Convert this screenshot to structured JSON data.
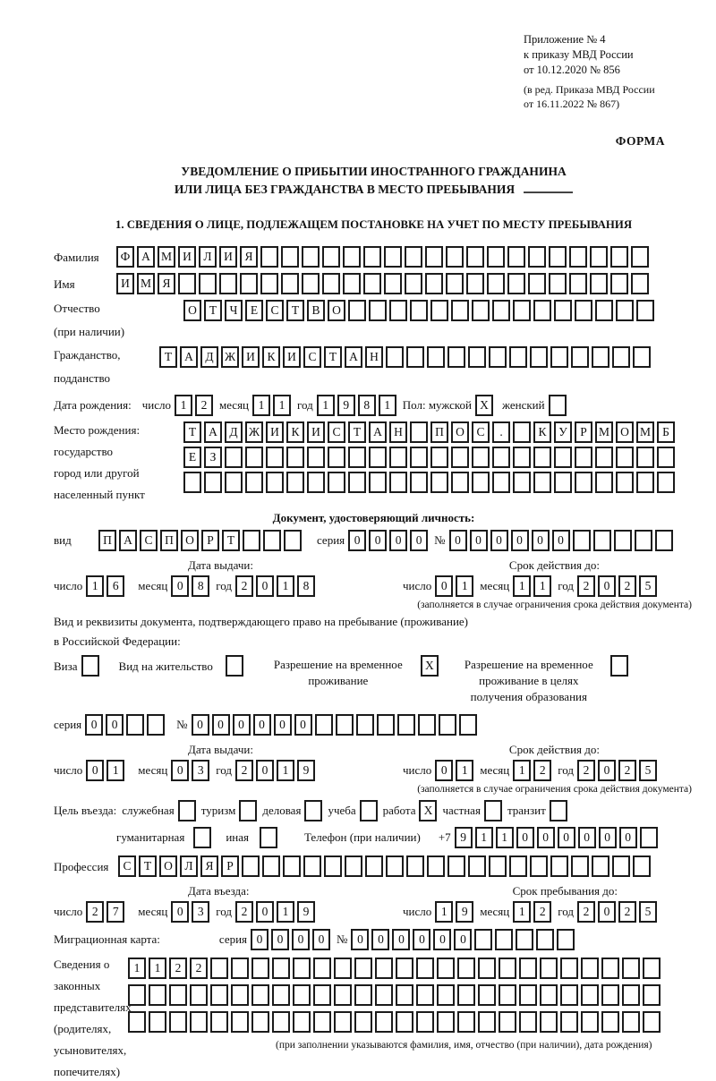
{
  "meta": {
    "ref_lines": [
      "Приложение № 4",
      "к приказу МВД России",
      "от 10.12.2020 № 856"
    ],
    "ref_sub_lines": [
      "(в ред. Приказа МВД России",
      "от 16.11.2022 № 867)"
    ],
    "form_label": "ФОРМА"
  },
  "title": {
    "line1": "УВЕДОМЛЕНИЕ О ПРИБЫТИИ ИНОСТРАННОГО ГРАЖДАНИНА",
    "line2": "ИЛИ ЛИЦА БЕЗ ГРАЖДАНСТВА В МЕСТО ПРЕБЫВАНИЯ"
  },
  "section1": {
    "heading": "1. СВЕДЕНИЯ О ЛИЦЕ, ПОДЛЕЖАЩЕМ ПОСТАНОВКЕ НА УЧЕТ ПО МЕСТУ ПРЕБЫВАНИЯ"
  },
  "labels": {
    "day": "число",
    "month": "месяц",
    "year": "год",
    "series": "серия",
    "number": "№",
    "issue_date": "Дата выдачи:",
    "valid_until": "Срок действия до:",
    "validity_note": "(заполняется в случае ограничения срока действия документа)"
  },
  "person": {
    "surname": {
      "label": "Фамилия",
      "value": "ФАМИЛИЯ"
    },
    "name": {
      "label": "Имя",
      "value": "ИМЯ"
    },
    "patronymic": {
      "label_line1": "Отчество",
      "label_line2": "(при наличии)",
      "value": "ОТЧЕСТВО"
    },
    "citizenship": {
      "label_line1": "Гражданство,",
      "label_line2": "подданство",
      "value": "ТАДЖИКИСТАН"
    },
    "birth_date": {
      "label": "Дата рождения:",
      "day": "12",
      "month": "11",
      "year": "1981"
    },
    "sex": {
      "label": "Пол: мужской",
      "male_value": "X",
      "female_label": "женский",
      "female_value": ""
    },
    "birth_place": {
      "label_line1": "Место рождения:",
      "label_line2": "государство",
      "label_line3": "город или другой",
      "label_line4": "населенный пункт",
      "row1": "ТАДЖИКИСТАН ПОС. КУРМОМБ",
      "row2": "ЕЗ",
      "row3": ""
    }
  },
  "identity_doc": {
    "heading": "Документ, удостоверяющий личность:",
    "type_label": "вид",
    "type_value": "ПАСПОРТ",
    "series": "0000",
    "number": "000000",
    "issue": {
      "day": "16",
      "month": "08",
      "year": "2018"
    },
    "valid": {
      "day": "01",
      "month": "11",
      "year": "2025"
    }
  },
  "residence_doc": {
    "intro_line1": "Вид и реквизиты документа, подтверждающего право на пребывание (проживание)",
    "intro_line2": "в Российской Федерации:",
    "options": [
      {
        "label": "Виза",
        "value": ""
      },
      {
        "label": "Вид на жительство",
        "value": ""
      },
      {
        "label": "Разрешение на временное проживание",
        "value": "X"
      },
      {
        "label": "Разрешение на временное проживание в целях получения образования",
        "value": ""
      }
    ],
    "series": "00",
    "number": "000000",
    "issue": {
      "day": "01",
      "month": "03",
      "year": "2019"
    },
    "valid": {
      "day": "01",
      "month": "12",
      "year": "2025"
    }
  },
  "visit": {
    "purpose_label": "Цель въезда:",
    "purposes": [
      {
        "label": "служебная",
        "value": ""
      },
      {
        "label": "туризм",
        "value": ""
      },
      {
        "label": "деловая",
        "value": ""
      },
      {
        "label": "учеба",
        "value": ""
      },
      {
        "label": "работа",
        "value": "X"
      },
      {
        "label": "частная",
        "value": ""
      },
      {
        "label": "транзит",
        "value": ""
      },
      {
        "label": "гуманитарная",
        "value": ""
      },
      {
        "label": "иная",
        "value": ""
      }
    ],
    "phone": {
      "label": "Телефон (при наличии)",
      "prefix": "+7",
      "digits": "911000000"
    },
    "profession": {
      "label": "Профессия",
      "value": "СТОЛЯР"
    },
    "entry_date": {
      "label": "Дата въезда:",
      "day": "27",
      "month": "03",
      "year": "2019"
    },
    "stay_until": {
      "label": "Срок пребывания до:",
      "day": "19",
      "month": "12",
      "year": "2025"
    }
  },
  "migration_card": {
    "label": "Миграционная карта:",
    "series": "0000",
    "number": "000000"
  },
  "representatives": {
    "label_line1": "Сведения о",
    "label_line2": "законных",
    "label_line3": "представителях",
    "label_line4": "(родителях,",
    "label_line5": "усыновителях,",
    "label_line6": "попечителях)",
    "row1": "1122",
    "row2": "",
    "row3": "",
    "note": "(при заполнении указываются фамилия, имя, отчество (при наличии), дата рождения)"
  }
}
